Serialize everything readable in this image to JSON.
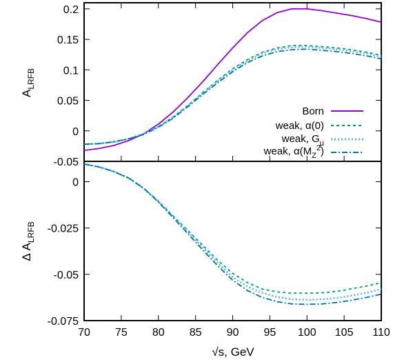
{
  "chart_data": [
    {
      "type": "line",
      "panel": "top",
      "ylabel": "A",
      "ylabel_sub": "LRFB",
      "xlim": [
        70,
        110
      ],
      "ylim": [
        -0.05,
        0.21
      ],
      "yticks": [
        -0.05,
        0,
        0.05,
        0.1,
        0.15,
        0.2
      ],
      "ytick_labels": [
        "-0.05",
        "0",
        "0.05",
        "0.1",
        "0.15",
        "0.2"
      ],
      "grid": false,
      "legend_position": "bottom-right",
      "x": [
        70,
        72,
        74,
        76,
        78,
        80,
        82,
        84,
        86,
        88,
        90,
        92,
        94,
        96,
        98,
        100,
        102,
        104,
        106,
        108,
        110
      ],
      "series": [
        {
          "key": "born",
          "name": "Born",
          "color": "#9400d3",
          "dash": "none",
          "values": [
            -0.032,
            -0.029,
            -0.024,
            -0.016,
            -0.005,
            0.011,
            0.031,
            0.055,
            0.081,
            0.109,
            0.136,
            0.161,
            0.181,
            0.194,
            0.2,
            0.2,
            0.197,
            0.193,
            0.189,
            0.184,
            0.178
          ]
        },
        {
          "key": "alpha0",
          "name": "weak, α(0)",
          "color": "#009e73",
          "dash": "4,4",
          "values": [
            -0.022,
            -0.021,
            -0.018,
            -0.013,
            -0.005,
            0.007,
            0.023,
            0.042,
            0.063,
            0.083,
            0.102,
            0.117,
            0.129,
            0.136,
            0.14,
            0.14,
            0.138,
            0.136,
            0.133,
            0.129,
            0.124
          ]
        },
        {
          "key": "gmu",
          "name": "weak, G_μ",
          "color": "#56b4e9",
          "dash": "2,3",
          "values": [
            -0.022,
            -0.021,
            -0.018,
            -0.013,
            -0.005,
            0.007,
            0.022,
            0.041,
            0.062,
            0.082,
            0.1,
            0.115,
            0.127,
            0.134,
            0.137,
            0.138,
            0.136,
            0.134,
            0.131,
            0.127,
            0.121
          ]
        },
        {
          "key": "mz",
          "name": "weak, α(M_Z^2)",
          "color": "#0072b2",
          "dash": "8,3,2,3",
          "values": [
            -0.022,
            -0.021,
            -0.018,
            -0.013,
            -0.006,
            0.006,
            0.021,
            0.04,
            0.06,
            0.079,
            0.097,
            0.112,
            0.123,
            0.13,
            0.133,
            0.134,
            0.132,
            0.13,
            0.127,
            0.123,
            0.118
          ]
        }
      ]
    },
    {
      "type": "line",
      "panel": "bottom",
      "ylabel": "Δ A",
      "ylabel_sub": "LRFB",
      "xlabel": "√s, GeV",
      "xlim": [
        70,
        110
      ],
      "ylim": [
        -0.075,
        0.011
      ],
      "xticks": [
        70,
        75,
        80,
        85,
        90,
        95,
        100,
        105,
        110
      ],
      "xtick_labels": [
        "70",
        "75",
        "80",
        "85",
        "90",
        "95",
        "100",
        "105",
        "110"
      ],
      "yticks": [
        -0.075,
        -0.05,
        -0.025,
        0
      ],
      "ytick_labels": [
        "-0.075",
        "-0.05",
        "-0.025",
        "0"
      ],
      "grid": false,
      "x": [
        70,
        72,
        74,
        76,
        78,
        80,
        82,
        84,
        86,
        88,
        90,
        92,
        94,
        96,
        98,
        100,
        102,
        104,
        106,
        108,
        110
      ],
      "series": [
        {
          "key": "alpha0",
          "color": "#009e73",
          "dash": "4,4",
          "values": [
            0.0095,
            0.008,
            0.0055,
            0.002,
            -0.0035,
            -0.0105,
            -0.0185,
            -0.0265,
            -0.0345,
            -0.0425,
            -0.0495,
            -0.0545,
            -0.058,
            -0.0595,
            -0.0602,
            -0.0602,
            -0.06,
            -0.0592,
            -0.0578,
            -0.0563,
            -0.0545
          ]
        },
        {
          "key": "gmu",
          "color": "#56b4e9",
          "dash": "2,3",
          "values": [
            0.0095,
            0.008,
            0.0055,
            0.002,
            -0.0035,
            -0.0107,
            -0.019,
            -0.0273,
            -0.0357,
            -0.044,
            -0.0515,
            -0.0567,
            -0.06,
            -0.0623,
            -0.0635,
            -0.0638,
            -0.0635,
            -0.0628,
            -0.0615,
            -0.06,
            -0.058
          ]
        },
        {
          "key": "mz",
          "color": "#0072b2",
          "dash": "8,3,2,3",
          "values": [
            0.0095,
            0.008,
            0.0055,
            0.002,
            -0.0035,
            -0.011,
            -0.0195,
            -0.0282,
            -0.037,
            -0.0455,
            -0.0532,
            -0.0588,
            -0.0625,
            -0.0648,
            -0.066,
            -0.0662,
            -0.066,
            -0.0652,
            -0.064,
            -0.0625,
            -0.0607
          ]
        }
      ]
    }
  ]
}
